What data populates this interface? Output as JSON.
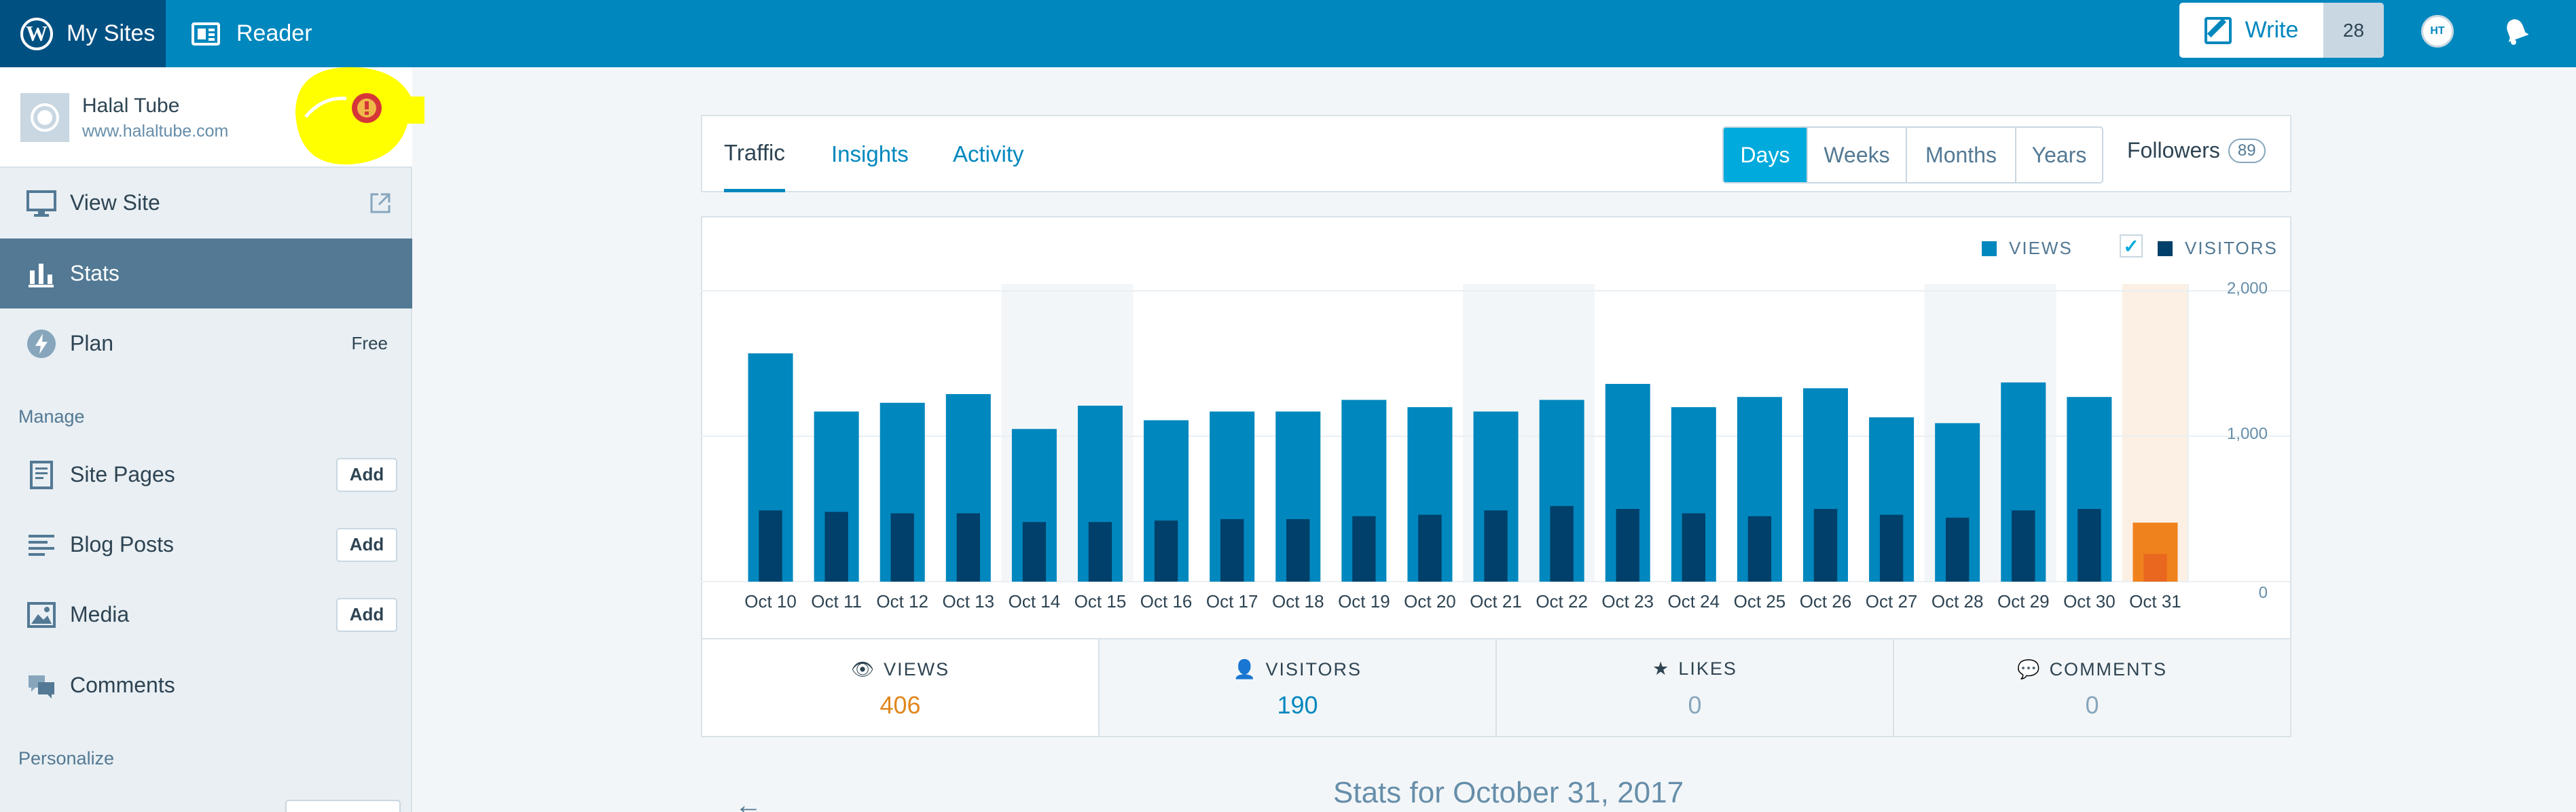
{
  "masterbar": {
    "my_sites": "My Sites",
    "reader": "Reader",
    "write": "Write",
    "write_count": "28"
  },
  "sidebar": {
    "site_name": "Halal Tube",
    "site_url": "www.halaltube.com",
    "view_site": "View Site",
    "stats": "Stats",
    "plan": "Plan",
    "plan_badge": "Free",
    "manage_header": "Manage",
    "site_pages": "Site Pages",
    "blog_posts": "Blog Posts",
    "media": "Media",
    "comments": "Comments",
    "add_label": "Add",
    "personalize_header": "Personalize"
  },
  "tabs": [
    "Traffic",
    "Insights",
    "Activity"
  ],
  "periods": [
    "Days",
    "Weeks",
    "Months",
    "Years"
  ],
  "followers": {
    "label": "Followers",
    "count": "89"
  },
  "legend": {
    "views": "VIEWS",
    "visitors": "VISITORS"
  },
  "colors": {
    "views": "#0087be",
    "visitors": "#00406a",
    "highlight_views": "#f0821e",
    "highlight_visitors": "#e9671f"
  },
  "chart_data": {
    "type": "bar",
    "categories": [
      "Oct 10",
      "Oct 11",
      "Oct 12",
      "Oct 13",
      "Oct 14",
      "Oct 15",
      "Oct 16",
      "Oct 17",
      "Oct 18",
      "Oct 19",
      "Oct 20",
      "Oct 21",
      "Oct 22",
      "Oct 23",
      "Oct 24",
      "Oct 25",
      "Oct 26",
      "Oct 27",
      "Oct 28",
      "Oct 29",
      "Oct 30",
      "Oct 31"
    ],
    "series": [
      {
        "name": "VIEWS",
        "values": [
          1570,
          1170,
          1230,
          1290,
          1050,
          1210,
          1110,
          1170,
          1170,
          1250,
          1200,
          1170,
          1250,
          1360,
          1200,
          1270,
          1330,
          1130,
          1090,
          1370,
          1270,
          406
        ]
      },
      {
        "name": "VISITORS",
        "values": [
          490,
          480,
          470,
          470,
          410,
          410,
          420,
          430,
          430,
          450,
          460,
          490,
          520,
          500,
          470,
          450,
          500,
          460,
          440,
          490,
          500,
          190
        ]
      }
    ],
    "ylim": [
      0,
      2000
    ],
    "y_ticks": [
      "0",
      "1,000",
      "2,000"
    ],
    "shaded_days": [
      "Oct 14",
      "Oct 15",
      "Oct 21",
      "Oct 22",
      "Oct 28",
      "Oct 29"
    ],
    "selected": "Oct 31"
  },
  "summary": [
    {
      "label": "VIEWS",
      "value": "406",
      "icon": "eye-icon",
      "color": "#e0871d"
    },
    {
      "label": "VISITORS",
      "value": "190",
      "icon": "person-icon",
      "color": "#0087be"
    },
    {
      "label": "LIKES",
      "value": "0",
      "icon": "star-icon",
      "color": "#87a6bc"
    },
    {
      "label": "COMMENTS",
      "value": "0",
      "icon": "comment-icon",
      "color": "#87a6bc"
    }
  ],
  "stats_for": "Stats for October 31, 2017"
}
